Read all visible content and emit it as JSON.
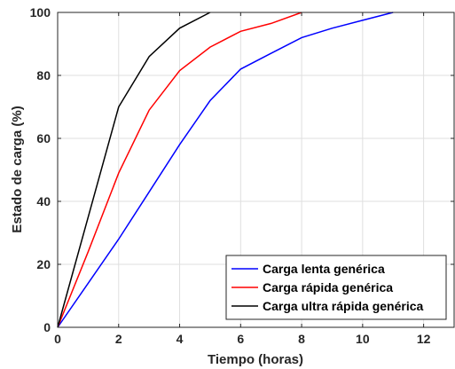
{
  "chart_data": {
    "type": "line",
    "xlabel": "Tiempo (horas)",
    "ylabel": "Estado de carga (%)",
    "xlim": [
      0,
      13
    ],
    "ylim": [
      0,
      100
    ],
    "xticks": [
      0,
      2,
      4,
      6,
      8,
      10,
      12
    ],
    "yticks": [
      0,
      20,
      40,
      60,
      80,
      100
    ],
    "grid": true,
    "legend_position": "bottom-right",
    "series": [
      {
        "name": "Carga lenta genérica",
        "color": "#0000ff",
        "x": [
          0,
          1,
          2,
          3,
          4,
          5,
          6,
          7,
          8,
          9,
          10,
          11
        ],
        "y": [
          0,
          14,
          28,
          43,
          58,
          72,
          82,
          87,
          92,
          95,
          97.5,
          100
        ]
      },
      {
        "name": "Carga rápida genérica",
        "color": "#ff0000",
        "x": [
          0,
          1,
          2,
          3,
          4,
          5,
          6,
          7,
          8
        ],
        "y": [
          0,
          24,
          49,
          69,
          81.5,
          89,
          94,
          96.5,
          100
        ]
      },
      {
        "name": "Carga ultra rápida genérica",
        "color": "#000000",
        "x": [
          0,
          1,
          2,
          3,
          4,
          5
        ],
        "y": [
          0,
          35,
          70,
          86,
          95,
          100
        ]
      }
    ]
  }
}
